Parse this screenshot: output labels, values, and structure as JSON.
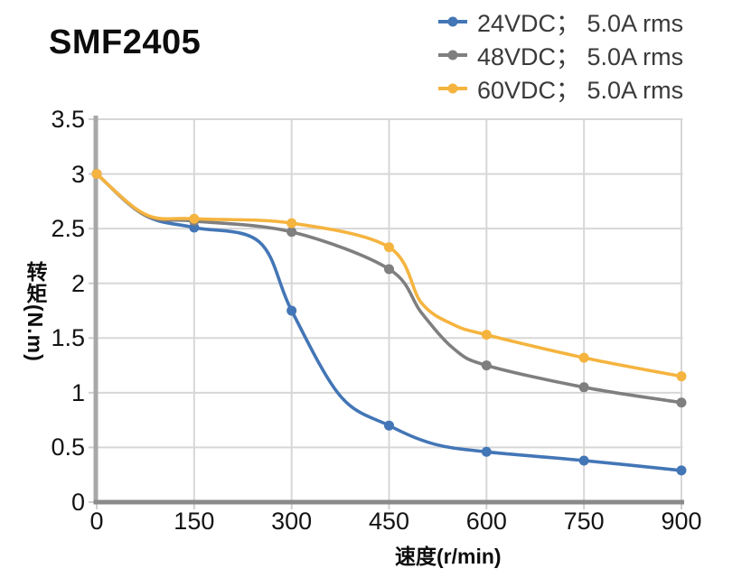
{
  "title": "SMF2405",
  "legend": [
    {
      "label": "24VDC； 5.0A rms",
      "color": "#4376b6"
    },
    {
      "label": "48VDC； 5.0A rms",
      "color": "#7f7f7f"
    },
    {
      "label": "60VDC； 5.0A rms",
      "color": "#f5b43f"
    }
  ],
  "colors": {
    "grid": "#d7d7d7",
    "tick_stub": "#cfcfcf",
    "y_axis": "#a8a8a8",
    "x_axis": "#8a8a8a",
    "text": "#141414"
  },
  "chart_data": {
    "type": "line",
    "title": "SMF2405",
    "xlabel": "速度(r/min)",
    "ylabel": "转矩(N.m)",
    "xlim": [
      0,
      900
    ],
    "ylim": [
      0,
      3.5
    ],
    "x_ticks": [
      "0",
      "150",
      "300",
      "450",
      "600",
      "750",
      "900"
    ],
    "y_ticks": [
      "0",
      "0.5",
      "1",
      "1.5",
      "2",
      "2.5",
      "3",
      "3.5"
    ],
    "grid": true,
    "legend_position": "top-right",
    "categories": [
      0,
      150,
      300,
      450,
      600,
      750,
      900
    ],
    "series": [
      {
        "name": "24VDC； 5.0A rms",
        "color": "#4376b6",
        "values": [
          3.0,
          2.51,
          1.75,
          0.7,
          0.46,
          0.38,
          0.29
        ],
        "curve": {
          "x": [
            0,
            75,
            150,
            250,
            300,
            375,
            450,
            520,
            600,
            750,
            900
          ],
          "y": [
            3.0,
            2.62,
            2.51,
            2.38,
            1.75,
            0.97,
            0.7,
            0.53,
            0.46,
            0.38,
            0.29
          ]
        }
      },
      {
        "name": "48VDC； 5.0A rms",
        "color": "#7f7f7f",
        "values": [
          3.0,
          2.57,
          2.47,
          2.13,
          1.25,
          1.05,
          0.91
        ],
        "curve": {
          "x": [
            0,
            75,
            150,
            300,
            450,
            500,
            550,
            600,
            750,
            900
          ],
          "y": [
            3.0,
            2.62,
            2.57,
            2.47,
            2.13,
            1.73,
            1.4,
            1.25,
            1.05,
            0.91
          ]
        }
      },
      {
        "name": "60VDC； 5.0A rms",
        "color": "#f5b43f",
        "values": [
          3.0,
          2.59,
          2.55,
          2.33,
          1.53,
          1.32,
          1.15
        ],
        "curve": {
          "x": [
            0,
            75,
            150,
            300,
            450,
            500,
            550,
            600,
            750,
            900
          ],
          "y": [
            3.0,
            2.63,
            2.59,
            2.55,
            2.33,
            1.82,
            1.62,
            1.53,
            1.32,
            1.15
          ]
        }
      }
    ]
  }
}
